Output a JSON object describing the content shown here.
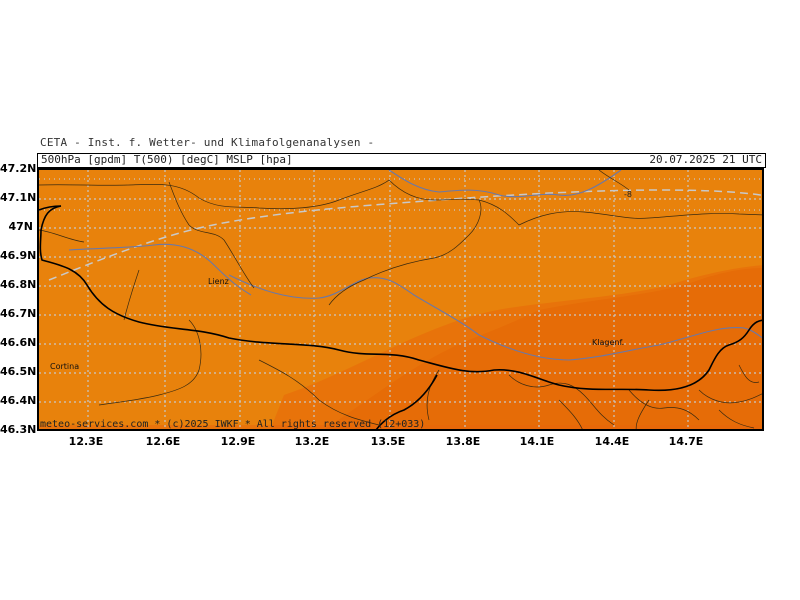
{
  "header": {
    "title": "CETA - Inst. f. Wetter- und Klimafolgenanalysen -",
    "fields": "500hPa [gpdm] T(500) [degC] MSLP [hpa]",
    "valid_time": "20.07.2025 21 UTC"
  },
  "footer": {
    "copyright": "meteo-services.com * (c)2025 IWKF * All rights reserved (12+033)"
  },
  "axes": {
    "lat_labels": [
      "47.2N",
      "47.1N",
      "47N",
      "46.9N",
      "46.8N",
      "46.7N",
      "46.6N",
      "46.5N",
      "46.4N",
      "46.3N"
    ],
    "lon_labels": [
      "12.3E",
      "12.6E",
      "12.9E",
      "13.2E",
      "13.5E",
      "13.8E",
      "14.1E",
      "14.4E",
      "14.7E"
    ]
  },
  "places": {
    "lienz": "Lienz",
    "klagenfurt": "Klagenf.",
    "cortina": "Cortina"
  },
  "pressure_marker": "-8",
  "colors": {
    "temp_band_1": "#e8820c",
    "temp_band_2": "#e8730a",
    "temp_band_3": "#e56a05",
    "grid": "#c8c8c8",
    "border": "#000000",
    "river": "#6a78a8",
    "contour": "#c8c8c8"
  }
}
